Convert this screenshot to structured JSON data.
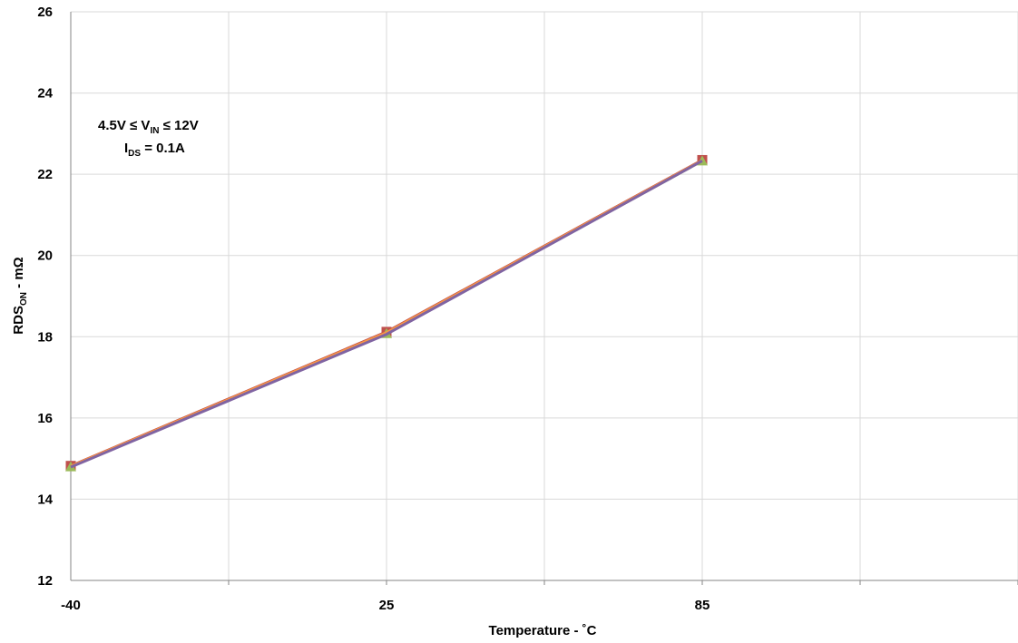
{
  "chart_data": {
    "type": "line",
    "title": "",
    "xlabel": "Temperature - ˚C",
    "ylabel": {
      "main": "RDS",
      "sub": "ON",
      "rest": " - mΩ"
    },
    "categories": [
      "-40",
      "",
      "25",
      "",
      "85",
      ""
    ],
    "ylim": [
      12,
      26
    ],
    "yticks": [
      12,
      14,
      16,
      18,
      20,
      22,
      24,
      26
    ],
    "grid": true,
    "legend": "none",
    "annotation": {
      "line1": {
        "a": "4.5V ≤ V",
        "sub": "IN",
        "b": " ≤ 12V"
      },
      "line2": {
        "a": "I",
        "sub": "DS",
        "b": " = 0.1A"
      }
    },
    "series": [
      {
        "x": [
          -40,
          25,
          85
        ],
        "values": [
          14.82,
          18.12,
          22.35
        ],
        "color": "#c0504d",
        "marker": "square"
      },
      {
        "x": [
          -40,
          25,
          85
        ],
        "values": [
          14.8,
          18.08,
          22.33
        ],
        "color": "#9bbb59",
        "marker": "triangle"
      },
      {
        "x": [
          -40,
          25,
          85
        ],
        "values": [
          14.81,
          18.1,
          22.34
        ],
        "color": "#f79646",
        "marker": "none"
      },
      {
        "x": [
          -40,
          25,
          85
        ],
        "values": [
          14.79,
          18.06,
          22.33
        ],
        "color": "#8064a2",
        "marker": "none"
      }
    ]
  }
}
